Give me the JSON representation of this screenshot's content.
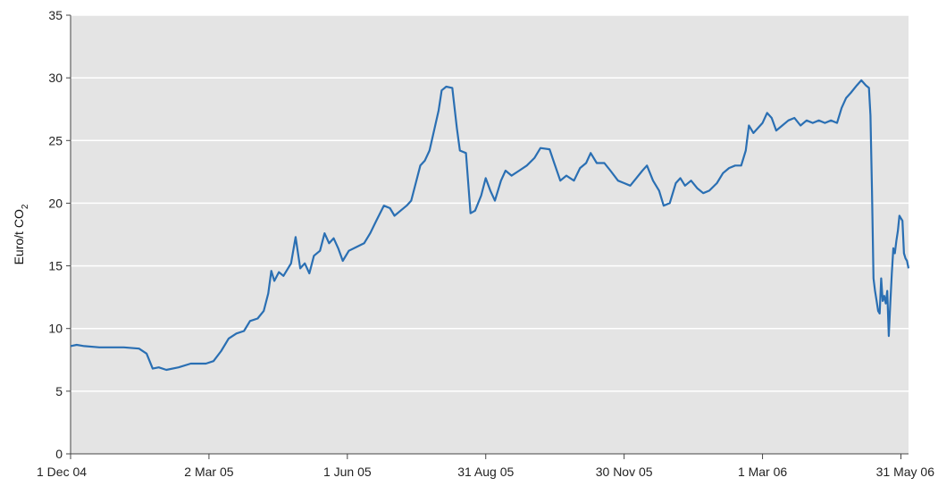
{
  "chart_data": {
    "type": "line",
    "title": "",
    "xlabel": "",
    "ylabel": "Euro/t CO",
    "ylabel_subscript": "2",
    "ylim": [
      0,
      35
    ],
    "xlim": [
      "2004-12-01",
      "2006-06-05"
    ],
    "grid": true,
    "yticks": [
      0,
      5,
      10,
      15,
      20,
      25,
      30,
      35
    ],
    "xticks": [
      {
        "date": "2004-12-01",
        "label": "1 Dec 04"
      },
      {
        "date": "2005-03-02",
        "label": "2 Mar 05"
      },
      {
        "date": "2005-06-01",
        "label": "1 Jun 05"
      },
      {
        "date": "2005-08-31",
        "label": "31 Aug 05"
      },
      {
        "date": "2005-11-30",
        "label": "30 Nov 05"
      },
      {
        "date": "2006-03-01",
        "label": "1 Mar 06"
      },
      {
        "date": "2006-05-31",
        "label": "31 May 06"
      }
    ],
    "colors": {
      "series": "#2a6fb3",
      "plot_bg": "#e4e4e4",
      "grid": "#ffffff"
    },
    "series": [
      {
        "points": [
          [
            "2004-12-01",
            8.6
          ],
          [
            "2004-12-05",
            8.7
          ],
          [
            "2004-12-10",
            8.6
          ],
          [
            "2004-12-20",
            8.5
          ],
          [
            "2005-01-05",
            8.5
          ],
          [
            "2005-01-15",
            8.4
          ],
          [
            "2005-01-20",
            8.0
          ],
          [
            "2005-01-24",
            6.8
          ],
          [
            "2005-01-28",
            6.9
          ],
          [
            "2005-02-02",
            6.7
          ],
          [
            "2005-02-10",
            6.9
          ],
          [
            "2005-02-18",
            7.2
          ],
          [
            "2005-02-28",
            7.2
          ],
          [
            "2005-03-05",
            7.4
          ],
          [
            "2005-03-10",
            8.2
          ],
          [
            "2005-03-15",
            9.2
          ],
          [
            "2005-03-20",
            9.6
          ],
          [
            "2005-03-25",
            9.8
          ],
          [
            "2005-03-29",
            10.6
          ],
          [
            "2005-04-03",
            10.8
          ],
          [
            "2005-04-07",
            11.4
          ],
          [
            "2005-04-10",
            12.8
          ],
          [
            "2005-04-12",
            14.6
          ],
          [
            "2005-04-14",
            13.8
          ],
          [
            "2005-04-17",
            14.5
          ],
          [
            "2005-04-20",
            14.2
          ],
          [
            "2005-04-25",
            15.2
          ],
          [
            "2005-04-28",
            17.3
          ],
          [
            "2005-05-01",
            14.8
          ],
          [
            "2005-05-04",
            15.2
          ],
          [
            "2005-05-07",
            14.4
          ],
          [
            "2005-05-10",
            15.8
          ],
          [
            "2005-05-14",
            16.2
          ],
          [
            "2005-05-17",
            17.6
          ],
          [
            "2005-05-20",
            16.8
          ],
          [
            "2005-05-23",
            17.2
          ],
          [
            "2005-05-26",
            16.4
          ],
          [
            "2005-05-29",
            15.4
          ],
          [
            "2005-06-02",
            16.2
          ],
          [
            "2005-06-07",
            16.5
          ],
          [
            "2005-06-12",
            16.8
          ],
          [
            "2005-06-16",
            17.6
          ],
          [
            "2005-06-20",
            18.6
          ],
          [
            "2005-06-25",
            19.8
          ],
          [
            "2005-06-29",
            19.6
          ],
          [
            "2005-07-02",
            19.0
          ],
          [
            "2005-07-06",
            19.4
          ],
          [
            "2005-07-10",
            19.8
          ],
          [
            "2005-07-13",
            20.2
          ],
          [
            "2005-07-16",
            21.6
          ],
          [
            "2005-07-19",
            23.0
          ],
          [
            "2005-07-22",
            23.4
          ],
          [
            "2005-07-25",
            24.2
          ],
          [
            "2005-07-28",
            25.8
          ],
          [
            "2005-07-31",
            27.4
          ],
          [
            "2005-08-02",
            29.0
          ],
          [
            "2005-08-05",
            29.3
          ],
          [
            "2005-08-09",
            29.2
          ],
          [
            "2005-08-12",
            26.0
          ],
          [
            "2005-08-14",
            24.2
          ],
          [
            "2005-08-18",
            24.0
          ],
          [
            "2005-08-21",
            19.2
          ],
          [
            "2005-08-24",
            19.4
          ],
          [
            "2005-08-28",
            20.6
          ],
          [
            "2005-08-31",
            22.0
          ],
          [
            "2005-09-03",
            21.0
          ],
          [
            "2005-09-06",
            20.2
          ],
          [
            "2005-09-10",
            21.8
          ],
          [
            "2005-09-13",
            22.6
          ],
          [
            "2005-09-17",
            22.2
          ],
          [
            "2005-09-22",
            22.6
          ],
          [
            "2005-09-27",
            23.0
          ],
          [
            "2005-10-02",
            23.6
          ],
          [
            "2005-10-06",
            24.4
          ],
          [
            "2005-10-12",
            24.3
          ],
          [
            "2005-10-15",
            23.2
          ],
          [
            "2005-10-19",
            21.8
          ],
          [
            "2005-10-23",
            22.2
          ],
          [
            "2005-10-28",
            21.8
          ],
          [
            "2005-11-01",
            22.8
          ],
          [
            "2005-11-05",
            23.2
          ],
          [
            "2005-11-08",
            24.0
          ],
          [
            "2005-11-12",
            23.2
          ],
          [
            "2005-11-17",
            23.2
          ],
          [
            "2005-11-21",
            22.6
          ],
          [
            "2005-11-26",
            21.8
          ],
          [
            "2005-11-30",
            21.6
          ],
          [
            "2005-12-04",
            21.4
          ],
          [
            "2005-12-08",
            22.0
          ],
          [
            "2005-12-12",
            22.6
          ],
          [
            "2005-12-15",
            23.0
          ],
          [
            "2005-12-19",
            21.8
          ],
          [
            "2005-12-23",
            21.0
          ],
          [
            "2005-12-26",
            19.8
          ],
          [
            "2005-12-30",
            20.0
          ],
          [
            "2006-01-03",
            21.6
          ],
          [
            "2006-01-06",
            22.0
          ],
          [
            "2006-01-09",
            21.4
          ],
          [
            "2006-01-13",
            21.8
          ],
          [
            "2006-01-17",
            21.2
          ],
          [
            "2006-01-21",
            20.8
          ],
          [
            "2006-01-25",
            21.0
          ],
          [
            "2006-01-30",
            21.6
          ],
          [
            "2006-02-03",
            22.4
          ],
          [
            "2006-02-07",
            22.8
          ],
          [
            "2006-02-11",
            23.0
          ],
          [
            "2006-02-15",
            23.0
          ],
          [
            "2006-02-18",
            24.2
          ],
          [
            "2006-02-20",
            26.2
          ],
          [
            "2006-02-23",
            25.6
          ],
          [
            "2006-02-26",
            26.0
          ],
          [
            "2006-03-01",
            26.4
          ],
          [
            "2006-03-04",
            27.2
          ],
          [
            "2006-03-07",
            26.8
          ],
          [
            "2006-03-10",
            25.8
          ],
          [
            "2006-03-14",
            26.2
          ],
          [
            "2006-03-18",
            26.6
          ],
          [
            "2006-03-22",
            26.8
          ],
          [
            "2006-03-26",
            26.2
          ],
          [
            "2006-03-30",
            26.6
          ],
          [
            "2006-04-03",
            26.4
          ],
          [
            "2006-04-07",
            26.6
          ],
          [
            "2006-04-11",
            26.4
          ],
          [
            "2006-04-15",
            26.6
          ],
          [
            "2006-04-19",
            26.4
          ],
          [
            "2006-04-22",
            27.6
          ],
          [
            "2006-04-25",
            28.4
          ],
          [
            "2006-04-28",
            28.8
          ],
          [
            "2006-05-02",
            29.4
          ],
          [
            "2006-05-05",
            29.8
          ],
          [
            "2006-05-08",
            29.4
          ],
          [
            "2006-05-10",
            29.2
          ],
          [
            "2006-05-11",
            27.0
          ],
          [
            "2006-05-12",
            21.0
          ],
          [
            "2006-05-13",
            14.0
          ],
          [
            "2006-05-14",
            13.0
          ],
          [
            "2006-05-15",
            12.2
          ],
          [
            "2006-05-16",
            11.4
          ],
          [
            "2006-05-17",
            11.2
          ],
          [
            "2006-05-18",
            14.0
          ],
          [
            "2006-05-19",
            12.2
          ],
          [
            "2006-05-20",
            12.6
          ],
          [
            "2006-05-21",
            12.0
          ],
          [
            "2006-05-22",
            13.0
          ],
          [
            "2006-05-23",
            9.4
          ],
          [
            "2006-05-24",
            12.0
          ],
          [
            "2006-05-25",
            14.4
          ],
          [
            "2006-05-26",
            16.4
          ],
          [
            "2006-05-27",
            16.0
          ],
          [
            "2006-05-28",
            17.0
          ],
          [
            "2006-05-29",
            17.8
          ],
          [
            "2006-05-30",
            19.0
          ],
          [
            "2006-05-31",
            18.8
          ],
          [
            "2006-06-01",
            18.6
          ],
          [
            "2006-06-02",
            16.0
          ],
          [
            "2006-06-03",
            15.6
          ],
          [
            "2006-06-04",
            15.4
          ],
          [
            "2006-06-05",
            14.8
          ]
        ]
      }
    ]
  }
}
